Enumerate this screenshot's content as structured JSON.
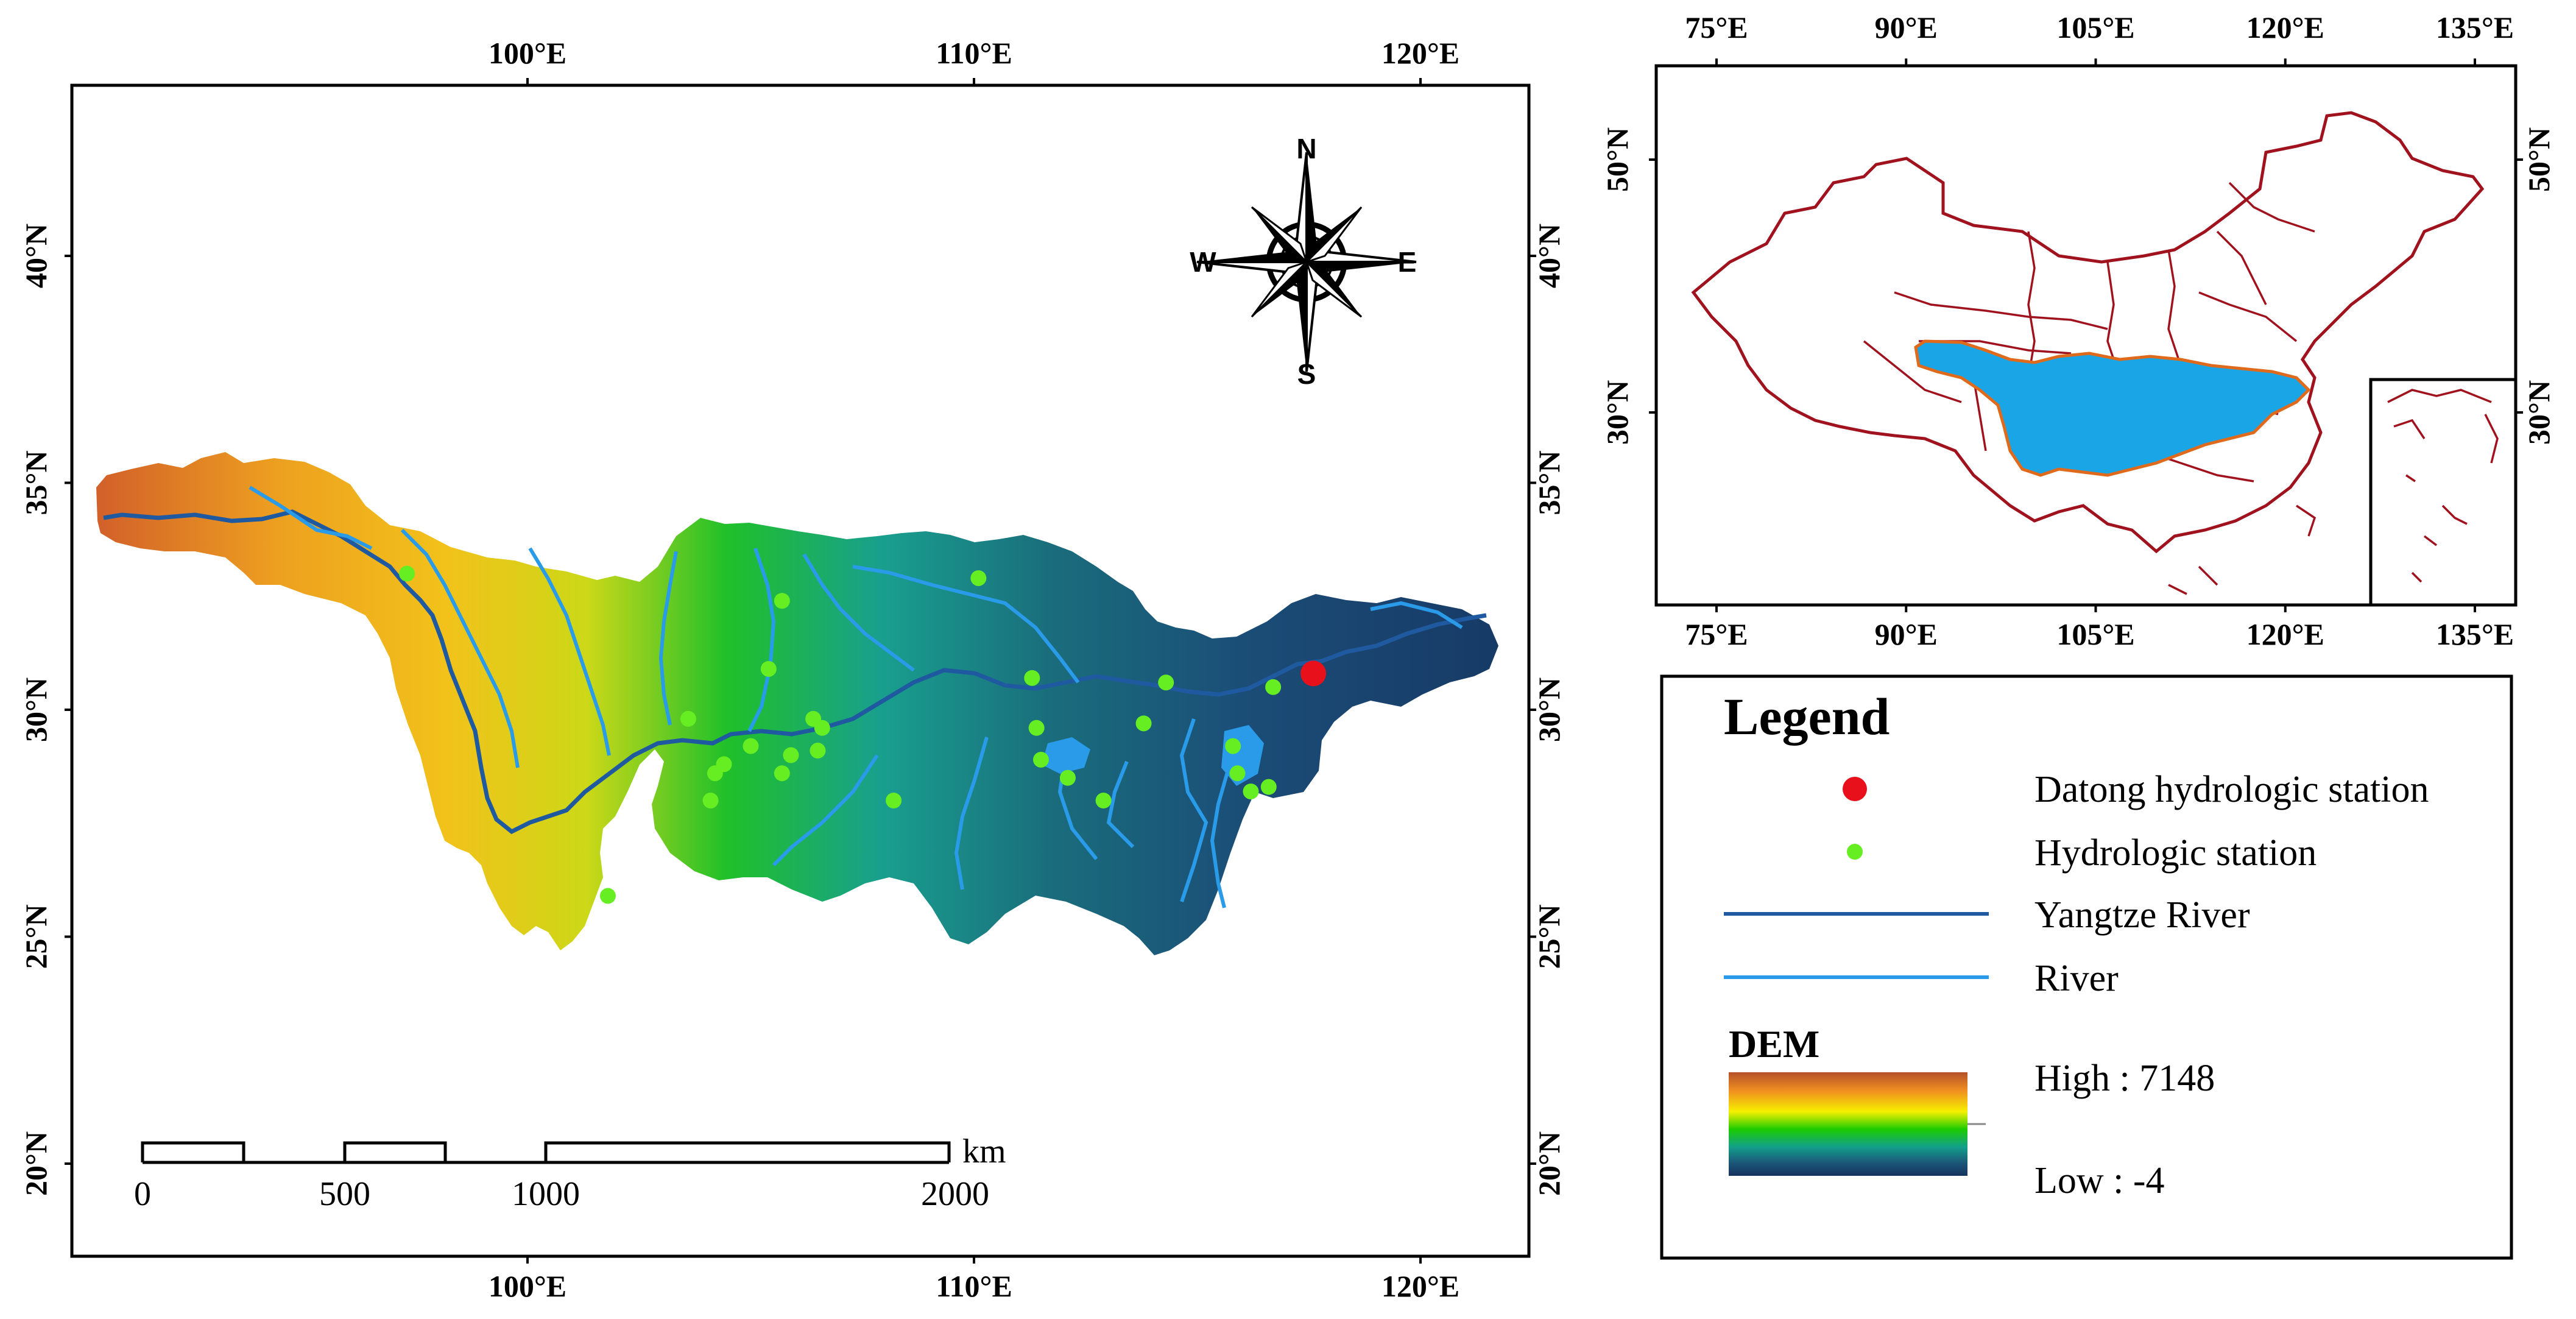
{
  "main_map": {
    "top_lon_labels": [
      "100°E",
      "110°E",
      "120°E"
    ],
    "bottom_lon_labels": [
      "100°E",
      "110°E",
      "120°E"
    ],
    "left_lat_labels": [
      "40°N",
      "35°N",
      "30°N",
      "25°N",
      "20°N"
    ],
    "right_lat_labels": [
      "40°N",
      "35°N",
      "30°N",
      "25°N",
      "20°N"
    ],
    "compass": {
      "n": "N",
      "s": "S",
      "e": "E",
      "w": "W"
    },
    "scale_bar": {
      "unit": "km",
      "labels": [
        "0",
        "500",
        "1000",
        "2000"
      ]
    },
    "datong_station": {
      "lon": 117.6,
      "lat": 30.8,
      "color": "#e8101a"
    },
    "hydro_stations": [
      {
        "lon": 97.3,
        "lat": 33.0
      },
      {
        "lon": 101.8,
        "lat": 25.9
      },
      {
        "lon": 103.6,
        "lat": 29.8
      },
      {
        "lon": 104.1,
        "lat": 28.0
      },
      {
        "lon": 104.2,
        "lat": 28.6
      },
      {
        "lon": 104.4,
        "lat": 28.8
      },
      {
        "lon": 105.0,
        "lat": 29.2
      },
      {
        "lon": 105.4,
        "lat": 30.9
      },
      {
        "lon": 105.7,
        "lat": 28.6
      },
      {
        "lon": 105.7,
        "lat": 32.4
      },
      {
        "lon": 105.9,
        "lat": 29.0
      },
      {
        "lon": 106.4,
        "lat": 29.8
      },
      {
        "lon": 106.5,
        "lat": 29.1
      },
      {
        "lon": 106.6,
        "lat": 29.6
      },
      {
        "lon": 108.2,
        "lat": 28.0
      },
      {
        "lon": 110.1,
        "lat": 32.9
      },
      {
        "lon": 111.3,
        "lat": 30.7
      },
      {
        "lon": 111.4,
        "lat": 29.6
      },
      {
        "lon": 111.5,
        "lat": 28.9
      },
      {
        "lon": 112.1,
        "lat": 28.5
      },
      {
        "lon": 112.9,
        "lat": 28.0
      },
      {
        "lon": 113.8,
        "lat": 29.7
      },
      {
        "lon": 114.3,
        "lat": 30.6
      },
      {
        "lon": 115.8,
        "lat": 29.2
      },
      {
        "lon": 115.9,
        "lat": 28.6
      },
      {
        "lon": 116.2,
        "lat": 28.2
      },
      {
        "lon": 116.6,
        "lat": 28.3
      },
      {
        "lon": 116.7,
        "lat": 30.5
      }
    ],
    "hydro_color": "#66ee22",
    "yangtze_color": "#1f5aa0",
    "river_color": "#2a9be8"
  },
  "inset_map": {
    "top_lon_labels": [
      "75°E",
      "90°E",
      "105°E",
      "120°E",
      "135°E"
    ],
    "bottom_lon_labels": [
      "75°E",
      "90°E",
      "105°E",
      "120°E",
      "135°E"
    ],
    "left_lat_labels": [
      "50°N",
      "30°N"
    ],
    "right_lat_labels": [
      "50°N",
      "30°N"
    ],
    "boundary_color": "#a0121d",
    "basin_fill": "#1aa6e6",
    "basin_edge": "#e06a1c"
  },
  "legend": {
    "title": "Legend",
    "items": [
      {
        "label": "Datong hydrologic station",
        "symbol": "datong-dot"
      },
      {
        "label": "Hydrologic station",
        "symbol": "hydro-dot"
      },
      {
        "label": "Yangtze River",
        "symbol": "yangtze-line"
      },
      {
        "label": "River",
        "symbol": "river-line"
      }
    ],
    "dem_title": "DEM",
    "dem_high": "High : 7148",
    "dem_low": "Low : -4",
    "dem_colors": [
      "#b5502a",
      "#f0a020",
      "#f4f000",
      "#19c800",
      "#139a88",
      "#1b4f78",
      "#17345c"
    ]
  }
}
